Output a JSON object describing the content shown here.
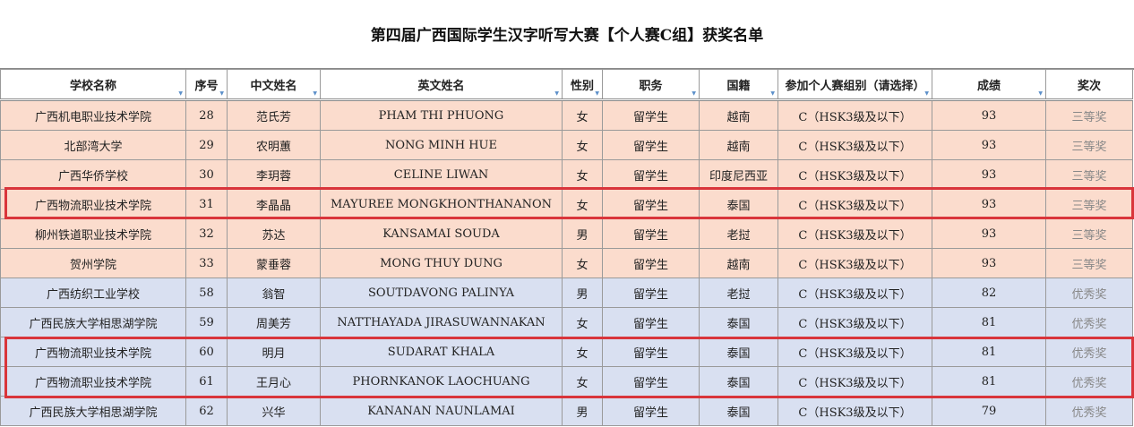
{
  "title": "第四届广西国际学生汉字听写大赛【个人赛C组】获奖名单",
  "columns": [
    "学校名称",
    "序号",
    "中文姓名",
    "英文姓名",
    "性别",
    "职务",
    "国籍",
    "参加个人赛组别（请选择）",
    "成绩",
    "奖次"
  ],
  "rows": [
    [
      "广西机电职业技术学院",
      "28",
      "范氏芳",
      "PHAM THI PHUONG",
      "女",
      "留学生",
      "越南",
      "C（HSK3级及以下）",
      "93",
      "三等奖"
    ],
    [
      "北部湾大学",
      "29",
      "农明蕙",
      "NONG MINH HUE",
      "女",
      "留学生",
      "越南",
      "C（HSK3级及以下）",
      "93",
      "三等奖"
    ],
    [
      "广西华侨学校",
      "30",
      "李玥蓉",
      "CELINE LIWAN",
      "女",
      "留学生",
      "印度尼西亚",
      "C（HSK3级及以下）",
      "93",
      "三等奖"
    ],
    [
      "广西物流职业技术学院",
      "31",
      "李晶晶",
      "MAYUREE MONGKHONTHANANON",
      "女",
      "留学生",
      "泰国",
      "C（HSK3级及以下）",
      "93",
      "三等奖"
    ],
    [
      "柳州铁道职业技术学院",
      "32",
      "苏达",
      "KANSAMAI SOUDA",
      "男",
      "留学生",
      "老挝",
      "C（HSK3级及以下）",
      "93",
      "三等奖"
    ],
    [
      "贺州学院",
      "33",
      "蒙垂蓉",
      "MONG THUY DUNG",
      "女",
      "留学生",
      "越南",
      "C（HSK3级及以下）",
      "93",
      "三等奖"
    ],
    [
      "广西纺织工业学校",
      "58",
      "翁智",
      "SOUTDAVONG PALINYA",
      "男",
      "留学生",
      "老挝",
      "C（HSK3级及以下）",
      "82",
      "优秀奖"
    ],
    [
      "广西民族大学相思湖学院",
      "59",
      "周美芳",
      "NATTHAYADA JIRASUWANNAKAN",
      "女",
      "留学生",
      "泰国",
      "C（HSK3级及以下）",
      "81",
      "优秀奖"
    ],
    [
      "广西物流职业技术学院",
      "60",
      "明月",
      "SUDARAT KHALA",
      "女",
      "留学生",
      "泰国",
      "C（HSK3级及以下）",
      "81",
      "优秀奖"
    ],
    [
      "广西物流职业技术学院",
      "61",
      "王月心",
      "PHORNKANOK LAOCHUANG",
      "女",
      "留学生",
      "泰国",
      "C（HSK3级及以下）",
      "81",
      "优秀奖"
    ],
    [
      "广西民族大学相思湖学院",
      "62",
      "兴华",
      "KANANAN NAUNLAMAI",
      "男",
      "留学生",
      "泰国",
      "C（HSK3级及以下）",
      "79",
      "优秀奖"
    ]
  ],
  "row_groups": [
    "peach",
    "peach",
    "peach",
    "peach",
    "peach",
    "peach",
    "blue",
    "blue",
    "blue",
    "blue",
    "blue"
  ],
  "colors": {
    "peach": "#fbdccd",
    "blue": "#d9e0f1",
    "highlight": "#d9353b"
  },
  "highlighted_rows": [
    3,
    8,
    9
  ]
}
